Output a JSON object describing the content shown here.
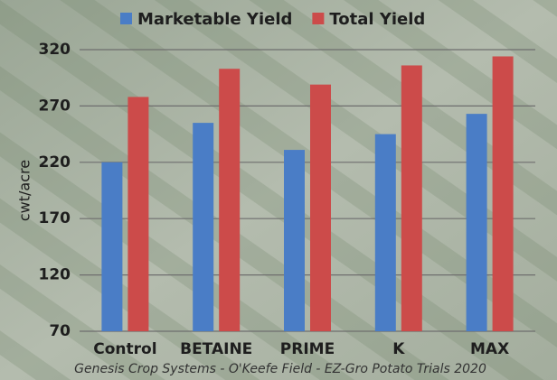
{
  "chart_data": {
    "type": "bar",
    "categories": [
      "Control",
      "BETAINE",
      "PRIME",
      "K",
      "MAX"
    ],
    "series": [
      {
        "name": "Marketable Yield",
        "color": "#4a7dc6",
        "values": [
          220,
          255,
          231,
          245,
          263
        ]
      },
      {
        "name": "Total Yield",
        "color": "#cc4b4a",
        "values": [
          278,
          303,
          289,
          306,
          314
        ]
      }
    ],
    "y_label": "cwt/acre",
    "caption": "Genesis Crop Systems - O'Keefe Field - EZ-Gro Potato Trials 2020",
    "ylim": [
      70,
      320
    ],
    "yticks": [
      70,
      120,
      170,
      220,
      270,
      320
    ],
    "grid": true
  }
}
